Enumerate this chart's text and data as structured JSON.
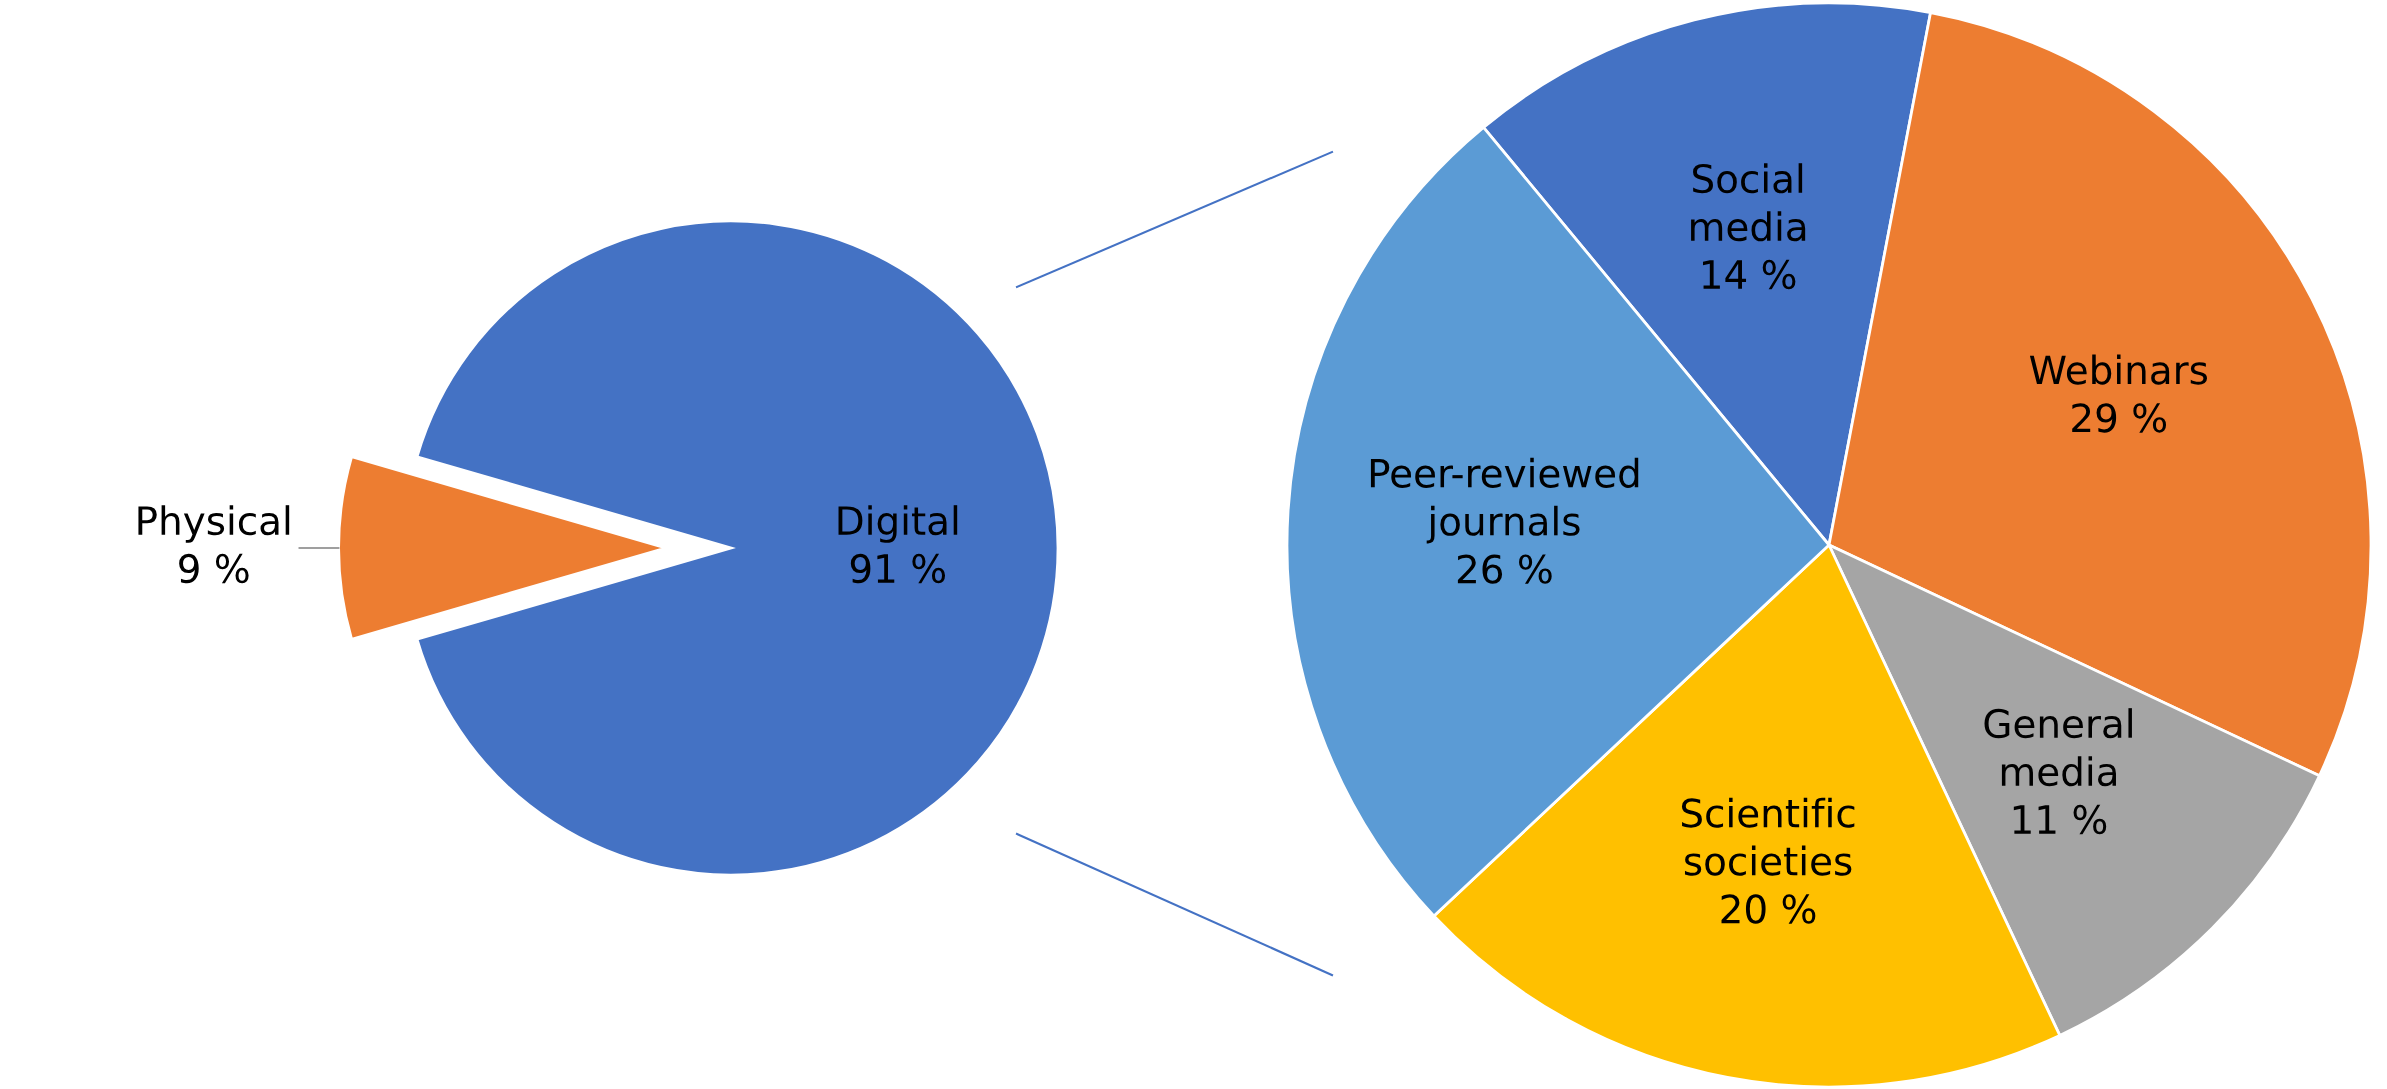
{
  "chart_data": [
    {
      "type": "pie",
      "categories": [
        "Physical",
        "Digital"
      ],
      "values": [
        9,
        91
      ],
      "colors": [
        "#ed7d31",
        "#4472c4"
      ],
      "value_labels": [
        "9 %",
        "91 %"
      ]
    },
    {
      "type": "pie",
      "categories": [
        "Social\nmedia",
        "Webinars",
        "General\nmedia",
        "Scientific\nsocieties",
        "Peer-reviewed\njournals"
      ],
      "values": [
        14,
        29,
        11,
        20,
        26
      ],
      "colors": [
        "#4472c4",
        "#ed7d31",
        "#a5a5a5",
        "#ffc000",
        "#5b9bd5"
      ],
      "value_labels": [
        "14 %",
        "29 %",
        "11 %",
        "20 %",
        "26 %"
      ]
    }
  ]
}
